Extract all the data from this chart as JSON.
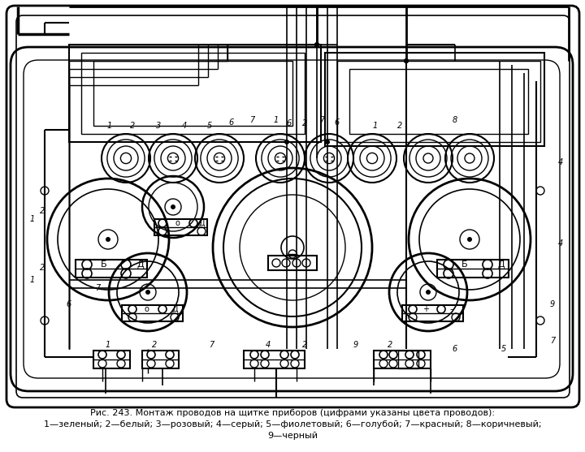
{
  "title_line1": "Рис. 243. Монтаж проводов на щитке приборов (цифрами указаны цвета проводов):",
  "title_line2": "1—зеленый; 2—белый; 3—розовый; 4—серый; 5—фиолетовый; 6—голубой; 7—красный; 8—коричневый;",
  "title_line3": "9—черный",
  "bg_color": "#ffffff",
  "line_color": "#000000",
  "fig_width": 7.2,
  "fig_height": 5.57,
  "dpi": 100
}
